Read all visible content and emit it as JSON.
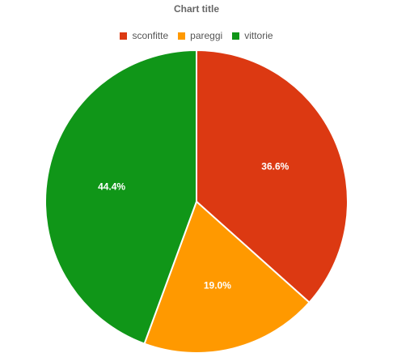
{
  "chart_data": {
    "type": "pie",
    "title": "Chart title",
    "legend_position": "top-center",
    "series": [
      {
        "name": "",
        "values": [
          36.6,
          19.0,
          44.4
        ]
      }
    ],
    "categories": [
      "sconfitte",
      "pareggi",
      "vittorie"
    ],
    "slices": [
      {
        "label": "sconfitte",
        "value": 36.6,
        "display": "36.6%",
        "color": "#dc3912"
      },
      {
        "label": "pareggi",
        "value": 19.0,
        "display": "19.0%",
        "color": "#ff9900"
      },
      {
        "label": "vittorie",
        "value": 44.4,
        "display": "44.4%",
        "color": "#109618"
      }
    ]
  }
}
